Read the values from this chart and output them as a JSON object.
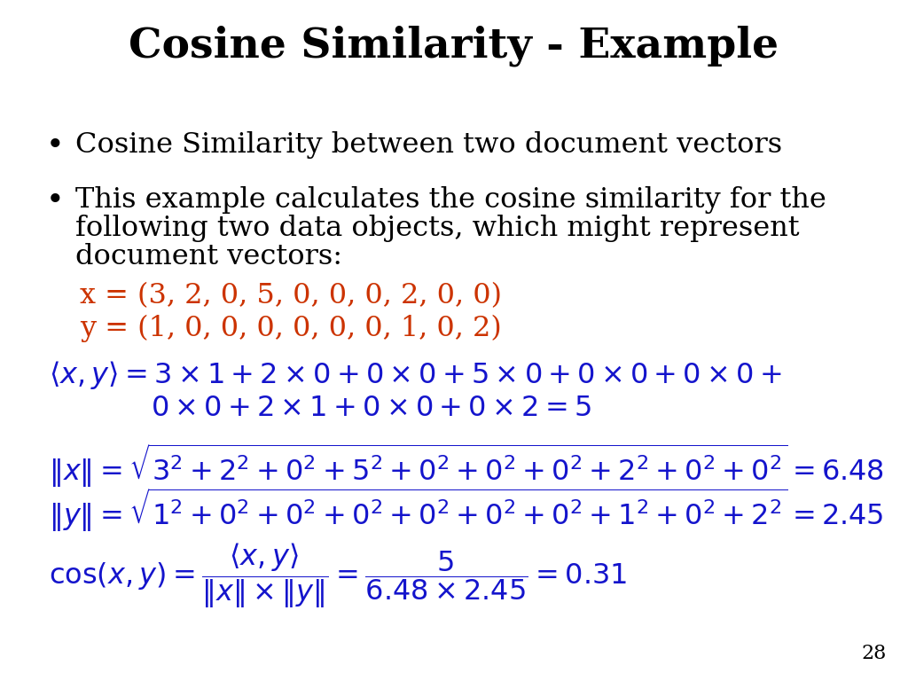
{
  "title": "Cosine Similarity - Example",
  "title_fontsize": 34,
  "title_fontweight": "bold",
  "background_color": "#ffffff",
  "black_color": "#000000",
  "orange_color": "#cc3300",
  "blue_color": "#1414cc",
  "slide_number": "28",
  "bullet1": "Cosine Similarity between two document vectors",
  "bullet2_line1": "This example calculates the cosine similarity for the",
  "bullet2_line2": "following two data objects, which might represent",
  "bullet2_line3": "document vectors:",
  "vec_x": "x = (3, 2, 0, 5, 0, 0, 0, 2, 0, 0)",
  "vec_y": "y = (1, 0, 0, 0, 0, 0, 0, 1, 0, 2)",
  "body_fontsize": 23,
  "math_fontsize": 23,
  "slide_num_fontsize": 16
}
